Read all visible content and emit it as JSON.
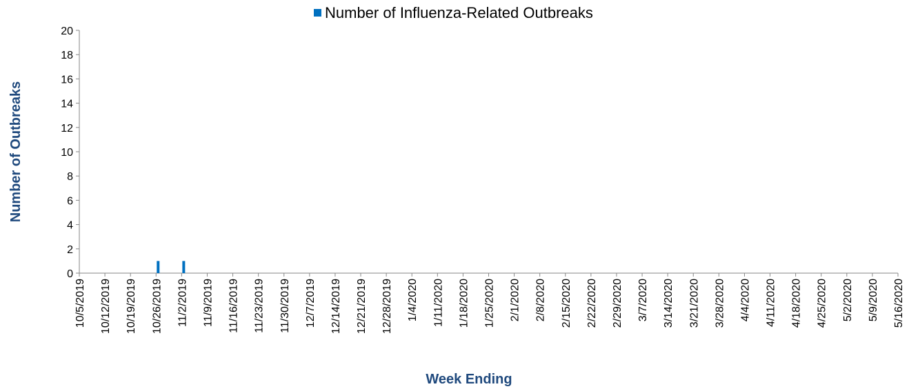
{
  "chart_data": {
    "type": "bar",
    "x_label": "Week Ending",
    "y_label": "Number of Outbreaks",
    "categories": [
      "10/5/2019",
      "10/12/2019",
      "10/19/2019",
      "10/26/2019",
      "11/2/2019",
      "11/9/2019",
      "11/16/2019",
      "11/23/2019",
      "11/30/2019",
      "12/7/2019",
      "12/14/2019",
      "12/21/2019",
      "12/28/2019",
      "1/4/2020",
      "1/11/2020",
      "1/18/2020",
      "1/25/2020",
      "2/1/2020",
      "2/8/2020",
      "2/15/2020",
      "2/22/2020",
      "2/29/2020",
      "3/7/2020",
      "3/14/2020",
      "3/21/2020",
      "3/28/2020",
      "4/4/2020",
      "4/11/2020",
      "4/18/2020",
      "4/25/2020",
      "5/2/2020",
      "5/9/2020",
      "5/16/2020"
    ],
    "series": [
      {
        "name": "Number of Influenza-Related Outbreaks",
        "color": "#0070c0",
        "values": [
          0,
          0,
          0,
          1,
          1,
          0,
          0,
          0,
          0,
          0,
          0,
          0,
          0,
          0,
          0,
          0,
          0,
          0,
          0,
          0,
          0,
          0,
          0,
          0,
          0,
          0,
          0,
          0,
          0,
          0,
          0,
          0,
          0
        ]
      }
    ],
    "ylim": [
      0,
      20
    ],
    "yticks": [
      0,
      2,
      4,
      6,
      8,
      10,
      12,
      14,
      16,
      18,
      20
    ],
    "legend": "top"
  }
}
